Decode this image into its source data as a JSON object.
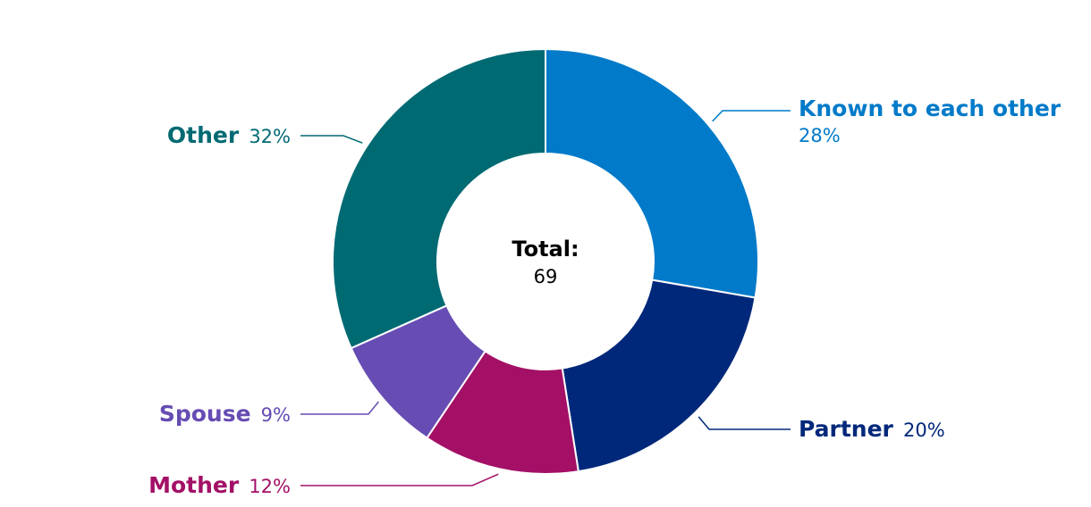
{
  "chart_data": {
    "type": "pie",
    "donut": true,
    "center": {
      "title": "Total:",
      "value": "69"
    },
    "slices": [
      {
        "label": "Known to each other",
        "pct_text": "28%",
        "value": 28,
        "color": "#007AC9"
      },
      {
        "label": "Partner",
        "pct_text": "20%",
        "value": 20,
        "color": "#00287A"
      },
      {
        "label": "Mother",
        "pct_text": "12%",
        "value": 12,
        "color": "#A31066"
      },
      {
        "label": "Spouse",
        "pct_text": "9%",
        "value": 9,
        "color": "#664CB3"
      },
      {
        "label": "Other",
        "pct_text": "32%",
        "value": 32,
        "color": "#006A73"
      }
    ]
  }
}
